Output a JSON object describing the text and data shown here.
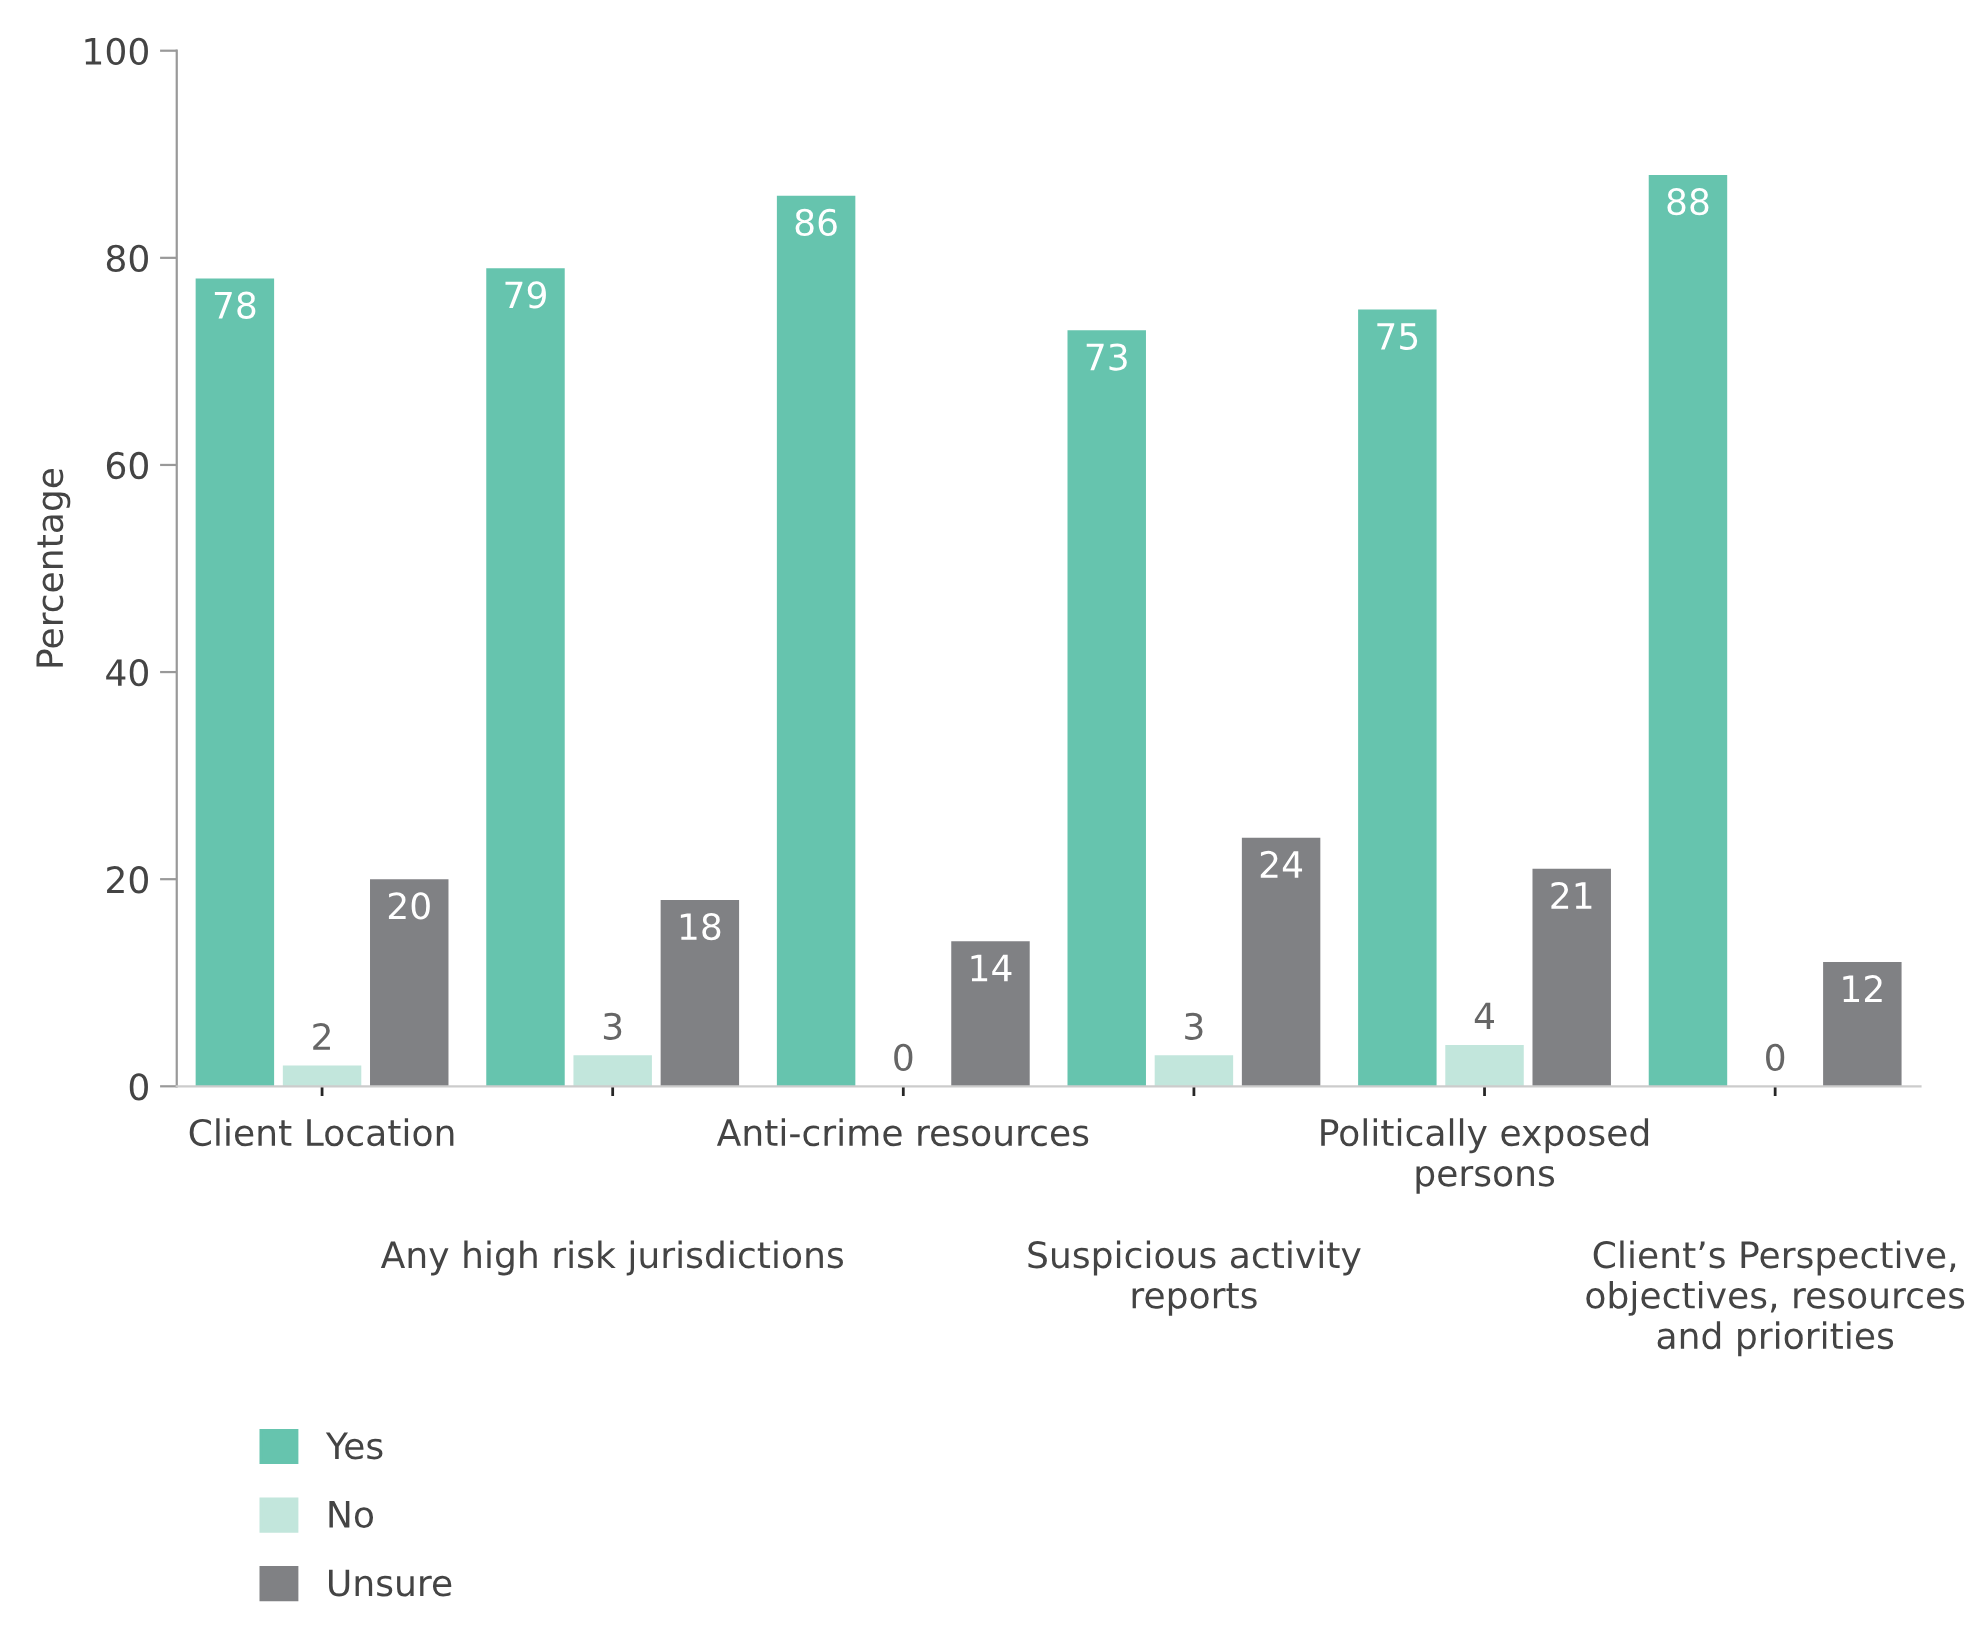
{
  "chart_data": {
    "type": "bar",
    "ylabel": "Percentage",
    "categories": [
      "Client Location",
      "Any high risk jurisdictions",
      "Anti-crime resources",
      "Suspicious activity\nreports",
      "Politically exposed\npersons",
      "Client’s Perspective,\nobjectives, resources\nand priorities"
    ],
    "series": [
      {
        "name": "Yes",
        "color": "#66c4ae",
        "values": [
          78,
          79,
          86,
          73,
          75,
          88
        ]
      },
      {
        "name": "No",
        "color": "#c2e6dc",
        "values": [
          2,
          3,
          0,
          3,
          4,
          0
        ]
      },
      {
        "name": "Unsure",
        "color": "#808184",
        "values": [
          20,
          18,
          14,
          24,
          21,
          12
        ]
      }
    ],
    "ylim": [
      0,
      100
    ],
    "yticks": [
      0,
      20,
      40,
      60,
      80,
      100
    ],
    "grid": false,
    "legend": "bottom left",
    "data_labels": true
  }
}
